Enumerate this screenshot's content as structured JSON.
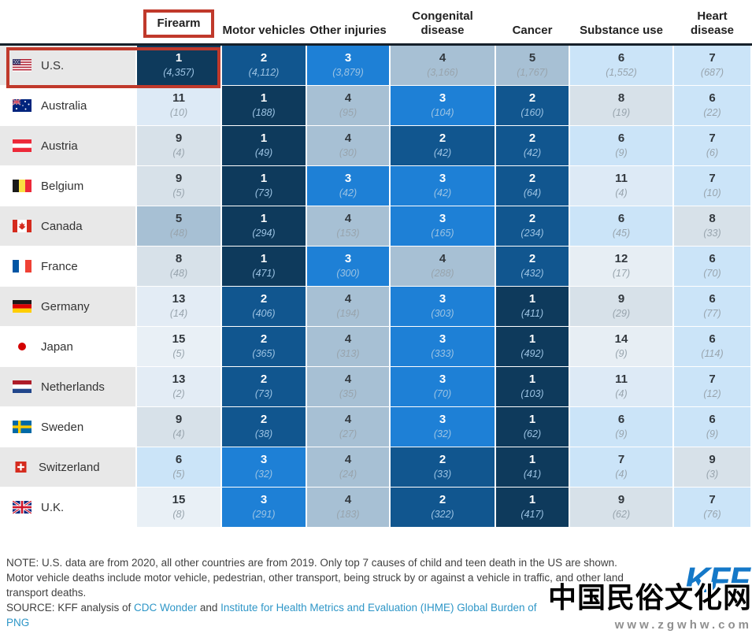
{
  "chart_data": {
    "type": "heatmap",
    "columns": [
      "Firearm",
      "Motor vehicles",
      "Other injuries",
      "Congenital disease",
      "Cancer",
      "Substance use",
      "Heart disease"
    ],
    "highlighted_column": "Firearm",
    "highlighted_row": "U.S.",
    "rows": [
      "U.S.",
      "Australia",
      "Austria",
      "Belgium",
      "Canada",
      "France",
      "Germany",
      "Japan",
      "Netherlands",
      "Sweden",
      "Switzerland",
      "U.K."
    ],
    "flags": [
      "us",
      "au",
      "at",
      "be",
      "ca",
      "fr",
      "de",
      "jp",
      "nl",
      "se",
      "ch",
      "uk"
    ],
    "ranks": [
      [
        1,
        2,
        3,
        4,
        5,
        6,
        7
      ],
      [
        11,
        1,
        4,
        3,
        2,
        8,
        6
      ],
      [
        9,
        1,
        4,
        2,
        2,
        6,
        7
      ],
      [
        9,
        1,
        3,
        3,
        2,
        11,
        7
      ],
      [
        5,
        1,
        4,
        3,
        2,
        6,
        8
      ],
      [
        8,
        1,
        3,
        4,
        2,
        12,
        6
      ],
      [
        13,
        2,
        4,
        3,
        1,
        9,
        6
      ],
      [
        15,
        2,
        4,
        3,
        1,
        14,
        6
      ],
      [
        13,
        2,
        4,
        3,
        1,
        11,
        7
      ],
      [
        9,
        2,
        4,
        3,
        1,
        6,
        6
      ],
      [
        6,
        3,
        4,
        2,
        1,
        7,
        9
      ],
      [
        15,
        3,
        4,
        2,
        1,
        9,
        7
      ]
    ],
    "counts": [
      [
        "4,357",
        "4,112",
        "3,879",
        "3,166",
        "1,767",
        "1,552",
        "687"
      ],
      [
        "10",
        "188",
        "95",
        "104",
        "160",
        "19",
        "22"
      ],
      [
        "4",
        "49",
        "30",
        "42",
        "42",
        "9",
        "6"
      ],
      [
        "5",
        "73",
        "42",
        "42",
        "64",
        "4",
        "10"
      ],
      [
        "48",
        "294",
        "153",
        "165",
        "234",
        "45",
        "33"
      ],
      [
        "48",
        "471",
        "300",
        "288",
        "432",
        "17",
        "70"
      ],
      [
        "14",
        "406",
        "194",
        "303",
        "411",
        "29",
        "77"
      ],
      [
        "5",
        "365",
        "313",
        "333",
        "492",
        "9",
        "114"
      ],
      [
        "2",
        "73",
        "35",
        "70",
        "103",
        "4",
        "12"
      ],
      [
        "4",
        "38",
        "27",
        "32",
        "62",
        "9",
        "9"
      ],
      [
        "5",
        "32",
        "24",
        "33",
        "41",
        "4",
        "3"
      ],
      [
        "8",
        "291",
        "183",
        "322",
        "417",
        "62",
        "76"
      ]
    ]
  },
  "palette": {
    "1": "#0e3a5c",
    "2": "#11568f",
    "3": "#1e80d6",
    "4": "#a7c0d4",
    "5": "#a7c0d4",
    "6": "#cbe4f8",
    "7": "#cbe4f8",
    "8": "#d7e1e9",
    "9": "#d7e1e9",
    "10": "#d7e1e9",
    "11": "#ddeaf6",
    "12": "#e7eef4",
    "13": "#e3ecf5",
    "14": "#e7eef4",
    "15": "#e9f0f6"
  },
  "highlight_color": "#c0392b",
  "footer": {
    "note_lines": [
      "NOTE: U.S. data are from 2020, all other countries are from 2019. Only top 7 causes of child and teen death in the US are shown.",
      "Motor vehicle deaths include motor vehicle, pedestrian, other transport, being struck by or against a vehicle in traffic, and other land",
      "transport deaths."
    ],
    "source_prefix": "SOURCE: KFF analysis of ",
    "source_link_1": "CDC Wonder",
    "source_conjunction": " and ",
    "source_link_2": "Institute for Health Metrics and Evaluation (IHME) Global Burden of",
    "png_link": "PNG",
    "logo_text": "KFF",
    "logo_color": "#1478c8",
    "link_color": "#2e96c7"
  },
  "watermark": {
    "title": "中国民俗文化网",
    "url": "www.zgwhw.com"
  }
}
